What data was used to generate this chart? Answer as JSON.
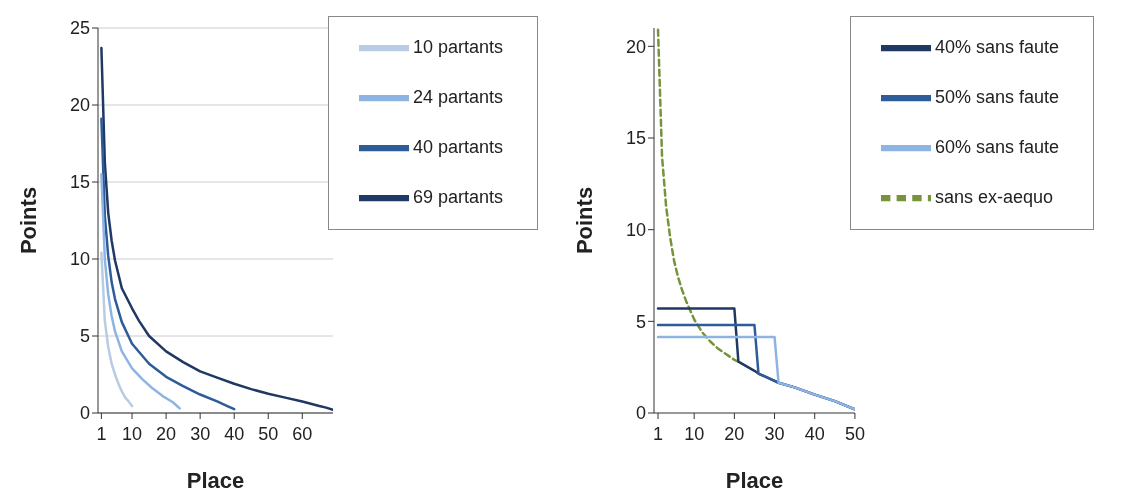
{
  "chart_data": [
    {
      "type": "line",
      "xlabel": "Place",
      "ylabel": "Points",
      "xlim": [
        0,
        69
      ],
      "xticks": [
        1,
        10,
        20,
        30,
        40,
        50,
        60
      ],
      "ylim": [
        0,
        25
      ],
      "yticks": [
        0,
        5,
        10,
        15,
        20,
        25
      ],
      "grid": "y",
      "legend": "top right",
      "line_style": "solid",
      "marker": "none",
      "series": [
        {
          "name": "69 partants",
          "color": "#1f3864",
          "x": [
            1,
            2,
            3,
            4,
            5,
            7,
            10,
            12,
            15,
            20,
            25,
            30,
            35,
            40,
            45,
            50,
            55,
            60,
            65,
            67,
            69
          ],
          "values": [
            23.7,
            16.3,
            13,
            11.2,
            9.9,
            8.1,
            6.8,
            6.0,
            5.0,
            4.0,
            3.3,
            2.7,
            2.3,
            1.9,
            1.55,
            1.25,
            1.0,
            0.75,
            0.45,
            0.35,
            0.2
          ]
        },
        {
          "name": "40 partants",
          "color": "#2e5c99",
          "x": [
            1,
            2,
            3,
            4,
            5,
            7,
            10,
            15,
            20,
            25,
            30,
            35,
            38,
            40
          ],
          "values": [
            19.1,
            12.8,
            10.2,
            8.5,
            7.4,
            5.9,
            4.5,
            3.2,
            2.35,
            1.75,
            1.2,
            0.75,
            0.45,
            0.25
          ]
        },
        {
          "name": "24 partants",
          "color": "#8eb4e3",
          "x": [
            1,
            2,
            3,
            4,
            5,
            7,
            10,
            13,
            16,
            19,
            22,
            24
          ],
          "values": [
            15.5,
            10.0,
            7.7,
            6.3,
            5.3,
            4.0,
            2.9,
            2.2,
            1.6,
            1.1,
            0.7,
            0.3
          ]
        },
        {
          "name": "10 partants",
          "color": "#b8cce4",
          "x": [
            1,
            2,
            3,
            4,
            5,
            6,
            7,
            8,
            9,
            10
          ],
          "values": [
            10.4,
            6.0,
            4.3,
            3.2,
            2.5,
            1.9,
            1.4,
            1.0,
            0.75,
            0.45
          ]
        }
      ]
    },
    {
      "type": "line",
      "xlabel": "Place",
      "ylabel": "Points",
      "xlim": [
        0,
        50
      ],
      "xticks": [
        1,
        10,
        20,
        30,
        40,
        50
      ],
      "ylim": [
        0,
        21
      ],
      "yticks": [
        0,
        5,
        10,
        15,
        20
      ],
      "grid": false,
      "legend": "top right",
      "marker": "none",
      "series": [
        {
          "name": "sans ex-aequo",
          "color": "#77933c",
          "line_style": "dashed",
          "x": [
            1,
            2,
            3,
            4,
            5,
            6,
            7,
            8,
            10,
            12,
            14,
            16,
            18,
            20,
            21
          ],
          "values": [
            20.9,
            14,
            11.3,
            9.6,
            8.3,
            7.4,
            6.7,
            6.1,
            5.1,
            4.4,
            3.9,
            3.5,
            3.2,
            2.9,
            2.8
          ]
        },
        {
          "name": "40% sans faute",
          "color": "#1f3864",
          "line_style": "solid",
          "x": [
            1,
            20,
            21,
            25,
            26,
            30,
            31,
            35,
            40,
            45,
            50
          ],
          "values": [
            5.7,
            5.7,
            2.8,
            2.3,
            2.15,
            1.75,
            1.65,
            1.4,
            1.0,
            0.65,
            0.2
          ]
        },
        {
          "name": "50% sans faute",
          "color": "#2e5c99",
          "line_style": "solid",
          "x": [
            1,
            25,
            26,
            30,
            31,
            35,
            40,
            45,
            50
          ],
          "values": [
            4.8,
            4.8,
            2.15,
            1.75,
            1.65,
            1.4,
            1.0,
            0.65,
            0.2
          ]
        },
        {
          "name": "60% sans faute",
          "color": "#8eb4e3",
          "line_style": "solid",
          "x": [
            1,
            30,
            31,
            35,
            40,
            45,
            50
          ],
          "values": [
            4.15,
            4.15,
            1.65,
            1.4,
            1.0,
            0.65,
            0.2
          ]
        }
      ]
    }
  ]
}
